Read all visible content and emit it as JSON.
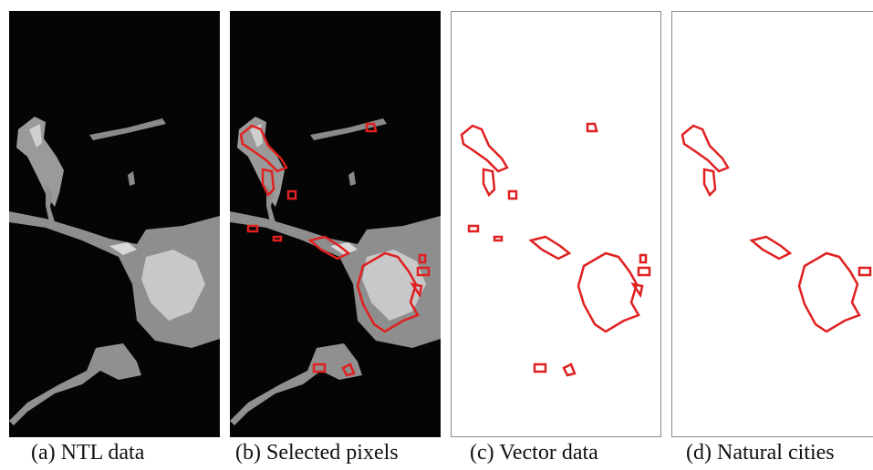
{
  "panels": [
    {
      "caption": "(a) NTL data"
    },
    {
      "caption": "(b) Selected pixels"
    },
    {
      "caption": "(c) Vector data"
    },
    {
      "caption": "(d) Natural cities"
    }
  ]
}
